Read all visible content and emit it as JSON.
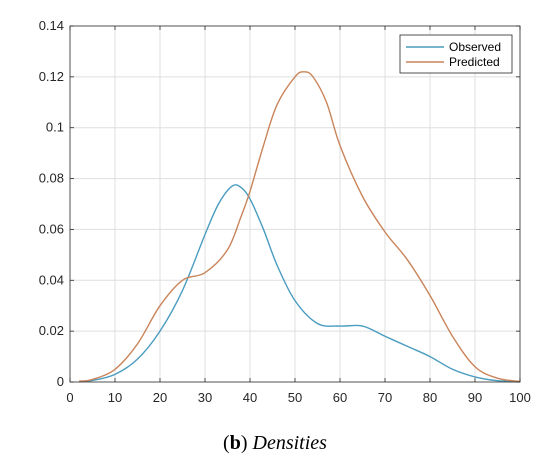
{
  "caption": {
    "open": "(",
    "letter": "b",
    "close": ")",
    "text": "Densities"
  },
  "chart_data": {
    "type": "line",
    "xlim": [
      0,
      100
    ],
    "ylim": [
      0,
      0.14
    ],
    "xticks": [
      0,
      10,
      20,
      30,
      40,
      50,
      60,
      70,
      80,
      90,
      100
    ],
    "yticks": [
      "0",
      "0.02",
      "0.04",
      "0.06",
      "0.08",
      "0.1",
      "0.12",
      "0.14"
    ],
    "grid": true,
    "legend_position": "top-right",
    "series": [
      {
        "name": "Observed",
        "color": "#4a9cc0",
        "x": [
          2,
          5,
          10,
          15,
          20,
          25,
          30,
          33,
          36,
          38,
          40,
          43,
          46,
          50,
          55,
          60,
          65,
          70,
          75,
          80,
          85,
          90,
          95,
          100
        ],
        "y": [
          0.0002,
          0.0006,
          0.003,
          0.009,
          0.02,
          0.036,
          0.058,
          0.07,
          0.077,
          0.0765,
          0.072,
          0.06,
          0.046,
          0.032,
          0.023,
          0.022,
          0.022,
          0.018,
          0.014,
          0.01,
          0.005,
          0.002,
          0.0005,
          0.0001
        ]
      },
      {
        "name": "Predicted",
        "color": "#c9845a",
        "x": [
          2,
          5,
          10,
          15,
          20,
          25,
          30,
          35,
          38,
          40,
          43,
          46,
          50,
          52,
          54,
          57,
          60,
          65,
          70,
          75,
          80,
          85,
          90,
          95,
          100
        ],
        "y": [
          0.0003,
          0.001,
          0.005,
          0.015,
          0.03,
          0.04,
          0.043,
          0.052,
          0.065,
          0.075,
          0.093,
          0.109,
          0.12,
          0.122,
          0.12,
          0.11,
          0.093,
          0.073,
          0.059,
          0.048,
          0.034,
          0.018,
          0.006,
          0.0015,
          0.0002
        ]
      }
    ]
  }
}
